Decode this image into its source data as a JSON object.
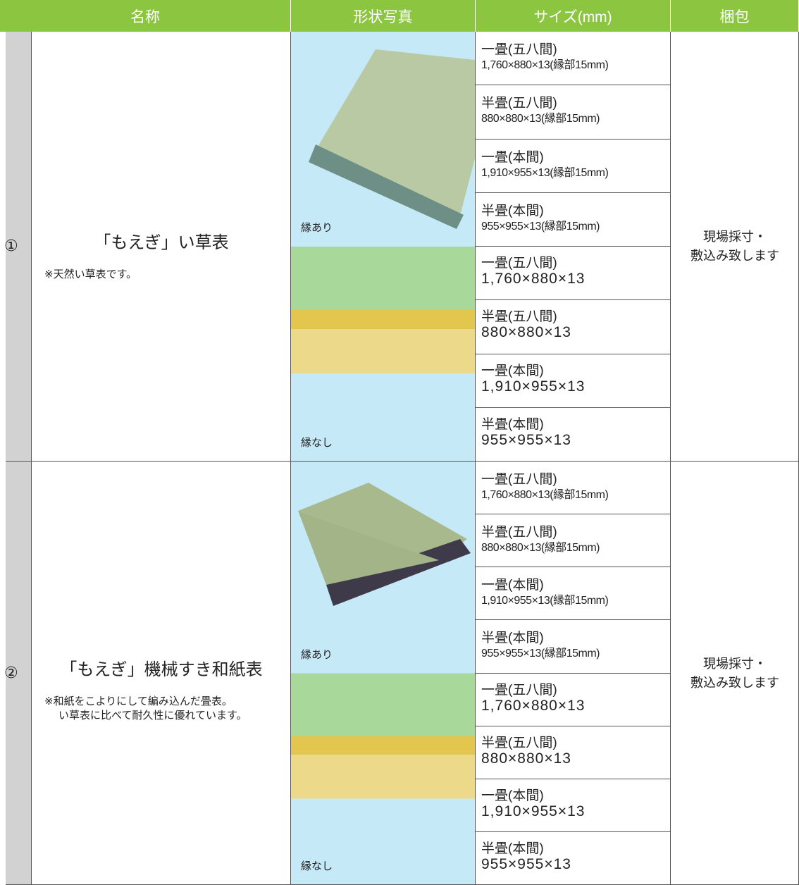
{
  "header": {
    "columns": [
      "名称",
      "形状写真",
      "サイズ(mm)",
      "梱包"
    ]
  },
  "rows": [
    {
      "number": "①",
      "name": "「もえぎ」い草表",
      "note": [
        "※天然い草表です。"
      ],
      "photos": [
        {
          "caption": "縁あり"
        },
        {
          "caption": "縁なし"
        }
      ],
      "sizes": [
        {
          "name": "一畳(五八間)",
          "dims": "1,760×880×13(縁部15mm)"
        },
        {
          "name": "半畳(五八間)",
          "dims": "880×880×13(縁部15mm)"
        },
        {
          "name": "一畳(本間)",
          "dims": "1,910×955×13(縁部15mm)"
        },
        {
          "name": "半畳(本間)",
          "dims": "955×955×13(縁部15mm)"
        },
        {
          "name": "一畳(五八間)",
          "dims": "1,760×880×13"
        },
        {
          "name": "半畳(五八間)",
          "dims": "880×880×13"
        },
        {
          "name": "一畳(本間)",
          "dims": "1,910×955×13"
        },
        {
          "name": "半畳(本間)",
          "dims": "955×955×13"
        }
      ],
      "packing": [
        "現場採寸・",
        "敷込み致します"
      ]
    },
    {
      "number": "②",
      "name": "「もえぎ」機械すき和紙表",
      "note": [
        "※和紙をこよりにして編み込んだ畳表。",
        "い草表に比べて耐久性に優れています。"
      ],
      "photos": [
        {
          "caption": "縁あり"
        },
        {
          "caption": "縁なし"
        }
      ],
      "sizes": [
        {
          "name": "一畳(五八間)",
          "dims": "1,760×880×13(縁部15mm)"
        },
        {
          "name": "半畳(五八間)",
          "dims": "880×880×13(縁部15mm)"
        },
        {
          "name": "一畳(本間)",
          "dims": "1,910×955×13(縁部15mm)"
        },
        {
          "name": "半畳(本間)",
          "dims": "955×955×13(縁部15mm)"
        },
        {
          "name": "一畳(五八間)",
          "dims": "1,760×880×13"
        },
        {
          "name": "半畳(五八間)",
          "dims": "880×880×13"
        },
        {
          "name": "一畳(本間)",
          "dims": "1,910×955×13"
        },
        {
          "name": "半畳(本間)",
          "dims": "955×955×13"
        }
      ],
      "packing": [
        "現場採寸・",
        "敷込み致します"
      ]
    }
  ]
}
